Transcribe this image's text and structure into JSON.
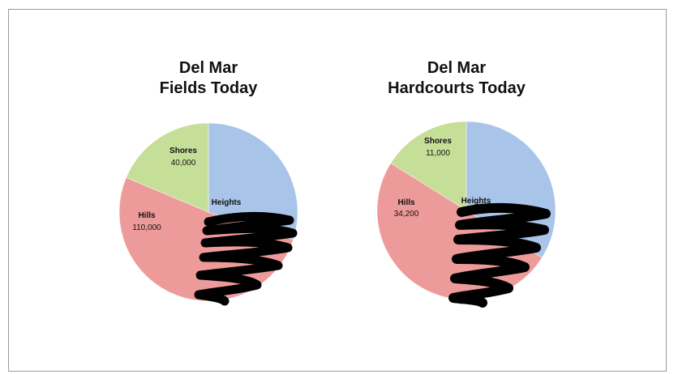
{
  "chart_data": [
    {
      "type": "pie",
      "title_line1": "Del Mar",
      "title_line2": "Fields Today",
      "slices": [
        {
          "label": "Heights",
          "value": null,
          "display": "",
          "color": "#a8c4e8",
          "obscured": true
        },
        {
          "label": "Hills",
          "value": 110000,
          "display": "110,000",
          "color": "#ed9b9a"
        },
        {
          "label": "Shores",
          "value": 40000,
          "display": "40,000",
          "color": "#c6df98"
        }
      ]
    },
    {
      "type": "pie",
      "title_line1": "Del Mar",
      "title_line2": "Hardcourts Today",
      "slices": [
        {
          "label": "Heights",
          "value": null,
          "display": "",
          "color": "#a8c4e8",
          "obscured": true
        },
        {
          "label": "Hills",
          "value": 34200,
          "display": "34,200",
          "color": "#ed9b9a"
        },
        {
          "label": "Shores",
          "value": 11000,
          "display": "11,000",
          "color": "#c6df98"
        }
      ]
    }
  ]
}
